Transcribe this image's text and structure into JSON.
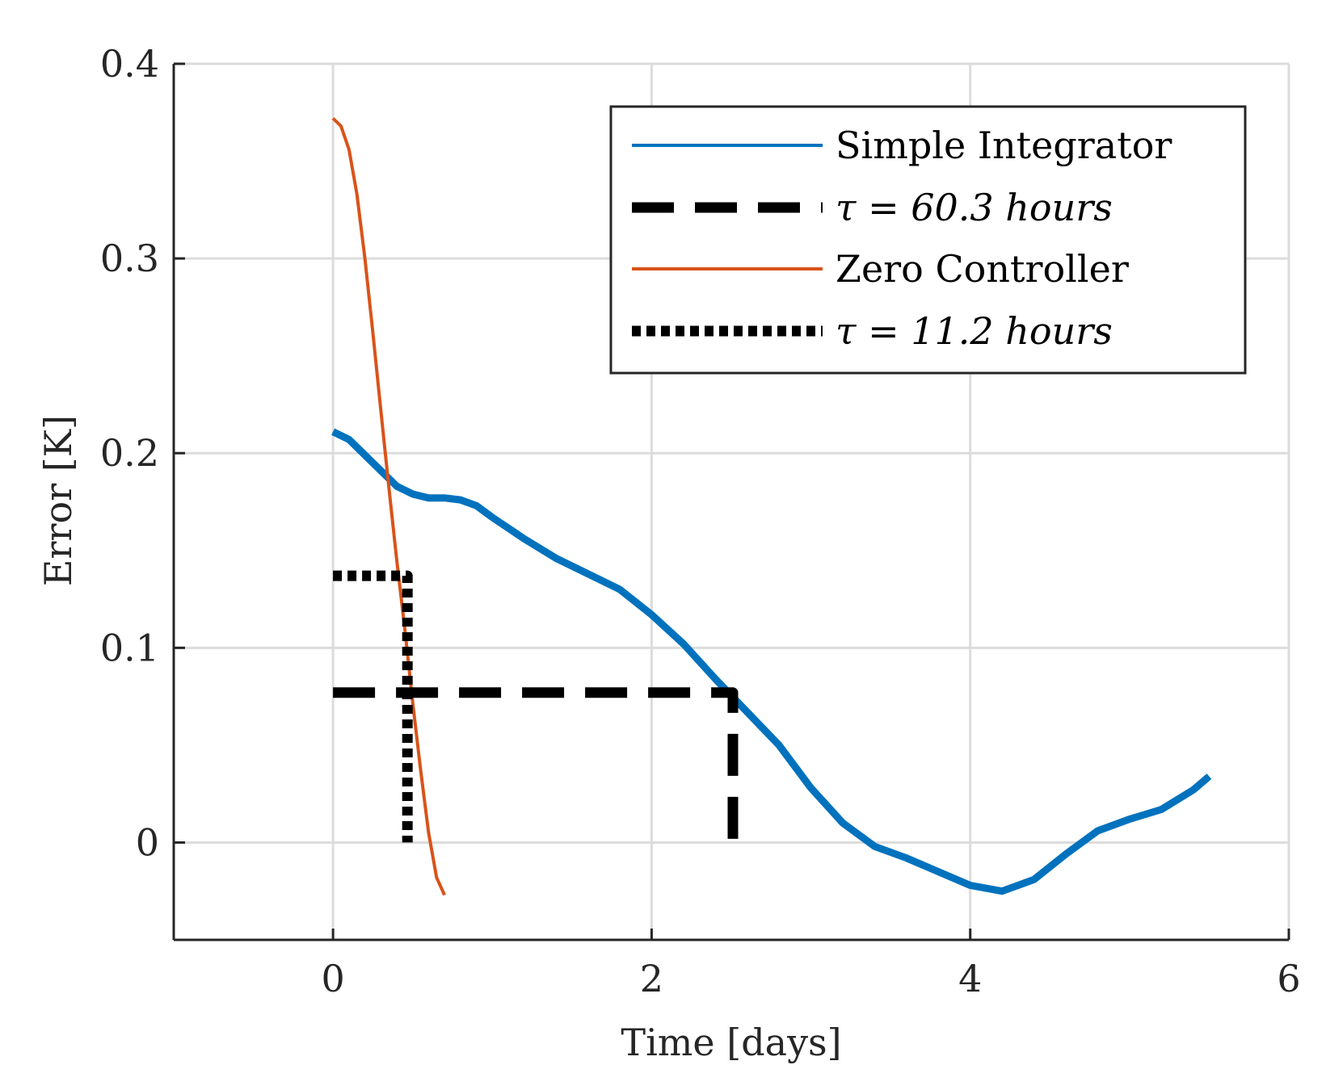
{
  "chart_data": {
    "type": "line",
    "title": "",
    "xlabel": "Time [days]",
    "ylabel": "Error [K]",
    "xlim": [
      -1,
      6
    ],
    "ylim": [
      -0.05,
      0.4
    ],
    "xticks": [
      0,
      2,
      4,
      6
    ],
    "xtick_labels": [
      "0",
      "2",
      "4",
      "6"
    ],
    "yticks": [
      0,
      0.1,
      0.2,
      0.3,
      0.4
    ],
    "ytick_labels": [
      "0",
      "0.1",
      "0.2",
      "0.3",
      "0.4"
    ],
    "grid": true,
    "legend_position": "top-right",
    "series": [
      {
        "name": "Simple Integrator",
        "style": "solid-thick",
        "color": "#0072BD",
        "x": [
          0,
          0.1,
          0.2,
          0.3,
          0.4,
          0.5,
          0.6,
          0.7,
          0.8,
          0.9,
          1.0,
          1.2,
          1.4,
          1.6,
          1.8,
          2.0,
          2.2,
          2.4,
          2.6,
          2.8,
          3.0,
          3.2,
          3.4,
          3.6,
          3.8,
          4.0,
          4.2,
          4.4,
          4.6,
          4.8,
          5.0,
          5.2,
          5.4,
          5.5
        ],
        "y": [
          0.211,
          0.207,
          0.199,
          0.191,
          0.183,
          0.179,
          0.177,
          0.177,
          0.176,
          0.173,
          0.167,
          0.156,
          0.146,
          0.138,
          0.13,
          0.117,
          0.102,
          0.084,
          0.067,
          0.05,
          0.028,
          0.01,
          -0.002,
          -0.008,
          -0.015,
          -0.022,
          -0.025,
          -0.019,
          -0.006,
          0.006,
          0.012,
          0.017,
          0.027,
          0.034
        ]
      },
      {
        "name": "τ = 60.3 hours",
        "style": "dashed",
        "color": "#000000",
        "x": [
          0,
          2.51,
          2.51
        ],
        "y": [
          0.077,
          0.077,
          0
        ]
      },
      {
        "name": "Zero Controller",
        "style": "solid-thin",
        "color": "#D95319",
        "x": [
          0,
          0.05,
          0.1,
          0.15,
          0.2,
          0.25,
          0.3,
          0.35,
          0.4,
          0.45,
          0.5,
          0.55,
          0.6,
          0.65,
          0.7
        ],
        "y": [
          0.372,
          0.368,
          0.356,
          0.333,
          0.3,
          0.262,
          0.222,
          0.183,
          0.145,
          0.11,
          0.072,
          0.037,
          0.005,
          -0.018,
          -0.027
        ]
      },
      {
        "name": "τ = 11.2 hours",
        "style": "dotted",
        "color": "#000000",
        "x": [
          0,
          0.467,
          0.467
        ],
        "y": [
          0.137,
          0.137,
          0
        ]
      }
    ]
  }
}
